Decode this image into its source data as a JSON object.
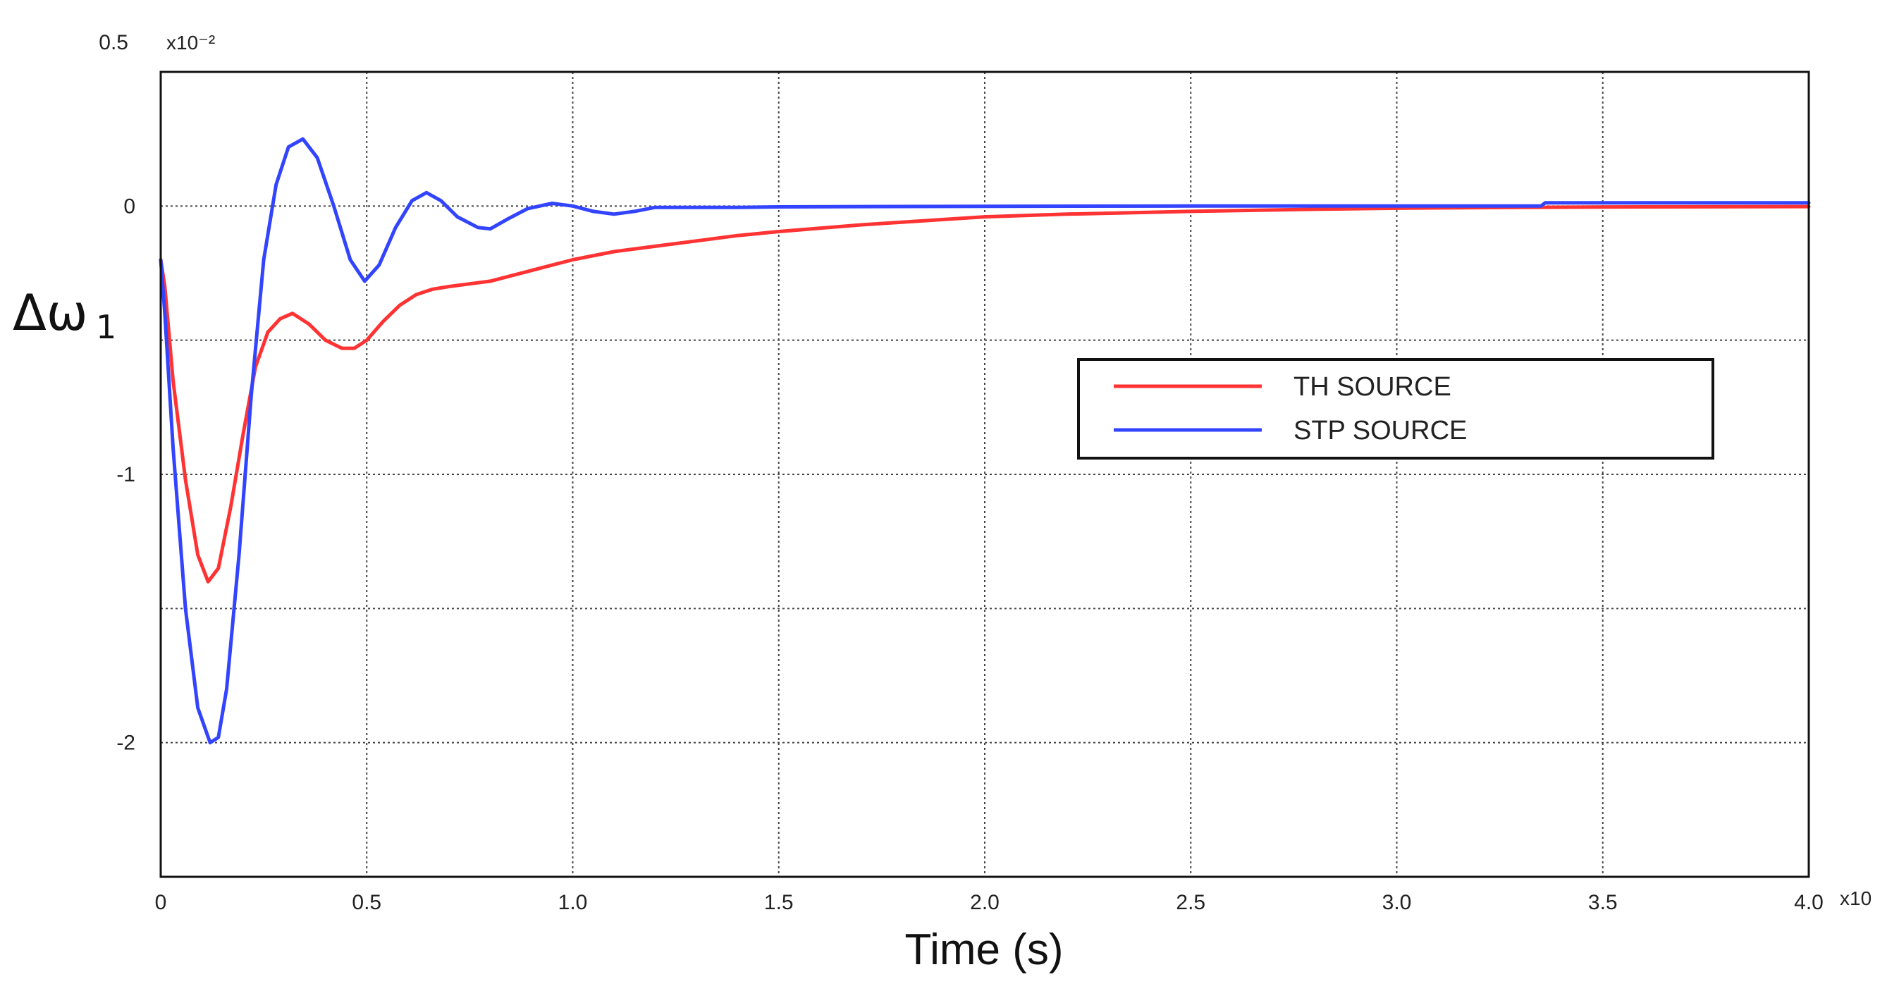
{
  "chart_data": {
    "type": "line",
    "title": "",
    "xlabel": "Time (s)",
    "ylabel": "Δω",
    "ylabel_subscript": "1",
    "x_multiplier_label": "x10",
    "y_multiplier_label": "x10⁻²",
    "xlim": [
      0,
      4.0
    ],
    "ylim": [
      -2.5,
      0.5
    ],
    "x_ticks": [
      {
        "value": 0,
        "label": "0"
      },
      {
        "value": 0.5,
        "label": "0.5"
      },
      {
        "value": 1.0,
        "label": "1.0"
      },
      {
        "value": 1.5,
        "label": "1.5"
      },
      {
        "value": 2.0,
        "label": "2.0"
      },
      {
        "value": 2.5,
        "label": "2.5"
      },
      {
        "value": 3.0,
        "label": "3.0"
      },
      {
        "value": 3.5,
        "label": "3.5"
      },
      {
        "value": 4.0,
        "label": "4.0"
      }
    ],
    "y_ticks": [
      {
        "value": 0.5,
        "label": "0.5"
      },
      {
        "value": 0,
        "label": "0"
      },
      {
        "value": -1,
        "label": "-1"
      },
      {
        "value": -2,
        "label": "-2"
      }
    ],
    "grid_x": [
      0.5,
      1.0,
      1.5,
      2.0,
      2.5,
      3.0,
      3.5
    ],
    "grid_y": [
      0,
      -0.5,
      -1.0,
      -1.5,
      -2.0
    ],
    "grid": true,
    "legend_position": "center-right",
    "series": [
      {
        "name": "TH SOURCE",
        "color": "#ff3333",
        "x": [
          0,
          0.01,
          0.03,
          0.06,
          0.09,
          0.115,
          0.14,
          0.17,
          0.2,
          0.23,
          0.26,
          0.29,
          0.32,
          0.36,
          0.4,
          0.44,
          0.47,
          0.5,
          0.54,
          0.58,
          0.62,
          0.66,
          0.7,
          0.75,
          0.8,
          0.85,
          0.9,
          1.0,
          1.1,
          1.2,
          1.3,
          1.4,
          1.5,
          1.7,
          1.9,
          2.0,
          2.2,
          2.5,
          2.8,
          3.0,
          3.3,
          3.6,
          4.0
        ],
        "y": [
          -0.2,
          -0.3,
          -0.65,
          -1.02,
          -1.3,
          -1.4,
          -1.35,
          -1.12,
          -0.85,
          -0.6,
          -0.47,
          -0.42,
          -0.4,
          -0.44,
          -0.5,
          -0.53,
          -0.53,
          -0.5,
          -0.43,
          -0.37,
          -0.33,
          -0.31,
          -0.3,
          -0.29,
          -0.28,
          -0.26,
          -0.24,
          -0.2,
          -0.17,
          -0.15,
          -0.13,
          -0.11,
          -0.095,
          -0.07,
          -0.05,
          -0.04,
          -0.03,
          -0.02,
          -0.012,
          -0.008,
          -0.005,
          -0.003,
          -0.002
        ]
      },
      {
        "name": "STP SOURCE",
        "color": "#3344ff",
        "x": [
          0,
          0.01,
          0.03,
          0.06,
          0.09,
          0.12,
          0.14,
          0.16,
          0.19,
          0.22,
          0.25,
          0.28,
          0.31,
          0.345,
          0.38,
          0.42,
          0.46,
          0.495,
          0.53,
          0.57,
          0.61,
          0.645,
          0.68,
          0.72,
          0.77,
          0.8,
          0.84,
          0.89,
          0.95,
          1.0,
          1.05,
          1.1,
          1.15,
          1.2,
          1.3,
          1.4,
          1.5,
          1.7,
          2.0,
          2.5,
          3.0,
          3.35,
          3.36,
          3.6,
          4.0
        ],
        "y": [
          -0.2,
          -0.4,
          -0.9,
          -1.5,
          -1.87,
          -2.0,
          -1.98,
          -1.8,
          -1.3,
          -0.7,
          -0.2,
          0.08,
          0.22,
          0.25,
          0.18,
          0.0,
          -0.2,
          -0.28,
          -0.22,
          -0.08,
          0.02,
          0.05,
          0.02,
          -0.04,
          -0.08,
          -0.085,
          -0.05,
          -0.01,
          0.01,
          0.0,
          -0.02,
          -0.03,
          -0.02,
          -0.005,
          -0.005,
          -0.005,
          -0.003,
          -0.002,
          -0.001,
          0.0,
          0.0,
          0.0,
          0.012,
          0.012,
          0.012
        ]
      }
    ]
  }
}
